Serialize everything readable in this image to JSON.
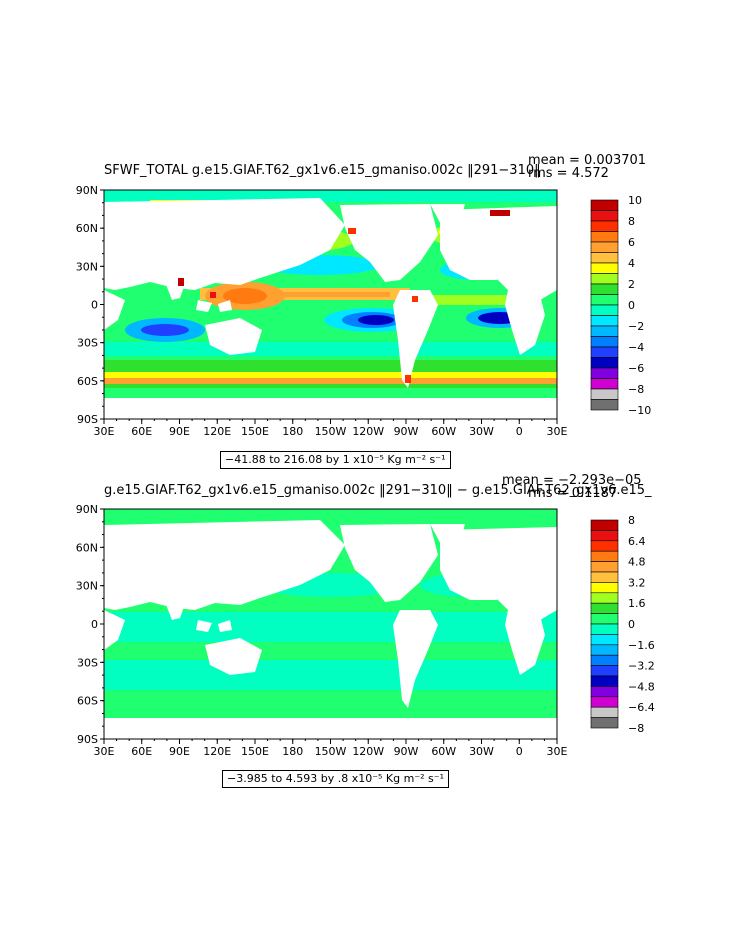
{
  "panels": [
    {
      "title": "SFWF_TOTAL g.e15.GIAF.T62_gx1v6.e15_gmaniso.002c ‖291−310‖",
      "mean_text": "mean = 0.003701",
      "rms_text": "rms = 4.572",
      "info_text": "−41.88 to 216.08 by 1 x10⁻⁵ Kg m⁻² s⁻¹",
      "lat_labels": [
        "90N",
        "60N",
        "30N",
        "0",
        "30S",
        "60S",
        "90S"
      ],
      "lon_labels": [
        "30E",
        "60E",
        "90E",
        "120E",
        "150E",
        "180",
        "150W",
        "120W",
        "90W",
        "60W",
        "30W",
        "0",
        "30E"
      ],
      "colorbar_labels": [
        "10",
        "8",
        "6",
        "4",
        "2",
        "0",
        "−2",
        "−4",
        "−6",
        "−8",
        "−10"
      ]
    },
    {
      "title": "g.e15.GIAF.T62_gx1v6.e15_gmaniso.002c ‖291−310‖ − g.e15.GIAF.T62_gx1v6.e15_",
      "mean_text": "mean = −2.293e−05",
      "rms_text": "rms = 0.1187",
      "info_text": "−3.985 to 4.593 by .8 x10⁻⁵ Kg m⁻² s⁻¹",
      "lat_labels": [
        "90N",
        "60N",
        "30N",
        "0",
        "30S",
        "60S",
        "90S"
      ],
      "lon_labels": [
        "30E",
        "60E",
        "90E",
        "120E",
        "150E",
        "180",
        "150W",
        "120W",
        "90W",
        "60W",
        "30W",
        "0",
        "30E"
      ],
      "colorbar_labels": [
        "8",
        "6.4",
        "4.8",
        "3.2",
        "1.6",
        "0",
        "−1.6",
        "−3.2",
        "−4.8",
        "−6.4",
        "−8"
      ]
    }
  ],
  "colors": {
    "scale": [
      "#c00000",
      "#e81010",
      "#ff3000",
      "#ff7a10",
      "#ffa030",
      "#ffc040",
      "#ffff00",
      "#a0ff20",
      "#30e030",
      "#20ff70",
      "#00ffc0",
      "#00e8ff",
      "#00b8ff",
      "#0080ff",
      "#2040ff",
      "#0000c0",
      "#8000e0",
      "#d000d0",
      "#c8c8c8",
      "#707070"
    ],
    "ocean_top": "#20ff70",
    "ocean_bottom": "#20ff70",
    "land": "#ffffff"
  }
}
